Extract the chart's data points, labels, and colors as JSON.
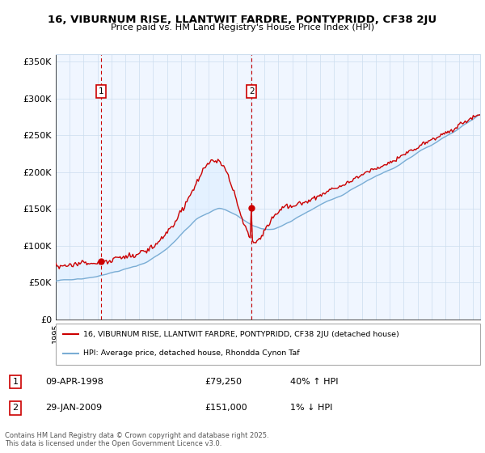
{
  "title": "16, VIBURNUM RISE, LLANTWIT FARDRE, PONTYPRIDD, CF38 2JU",
  "subtitle": "Price paid vs. HM Land Registry's House Price Index (HPI)",
  "ylabel_ticks": [
    "£0",
    "£50K",
    "£100K",
    "£150K",
    "£200K",
    "£250K",
    "£300K",
    "£350K"
  ],
  "ytick_values": [
    0,
    50000,
    100000,
    150000,
    200000,
    250000,
    300000,
    350000
  ],
  "ylim": [
    0,
    360000
  ],
  "xlim_start": 1995.0,
  "xlim_end": 2025.5,
  "red_color": "#cc0000",
  "blue_color": "#7aadd4",
  "blue_fill": "#ddeeff",
  "marker1_date": 1998.27,
  "marker1_value": 79250,
  "marker2_date": 2009.08,
  "marker2_value": 151000,
  "legend_line1": "16, VIBURNUM RISE, LLANTWIT FARDRE, PONTYPRIDD, CF38 2JU (detached house)",
  "legend_line2": "HPI: Average price, detached house, Rhondda Cynon Taf",
  "table_row1": [
    "1",
    "09-APR-1998",
    "£79,250",
    "40% ↑ HPI"
  ],
  "table_row2": [
    "2",
    "29-JAN-2009",
    "£151,000",
    "1% ↓ HPI"
  ],
  "footer": "Contains HM Land Registry data © Crown copyright and database right 2025.\nThis data is licensed under the Open Government Licence v3.0.",
  "background_color": "#ffffff",
  "grid_color": "#ccddee"
}
